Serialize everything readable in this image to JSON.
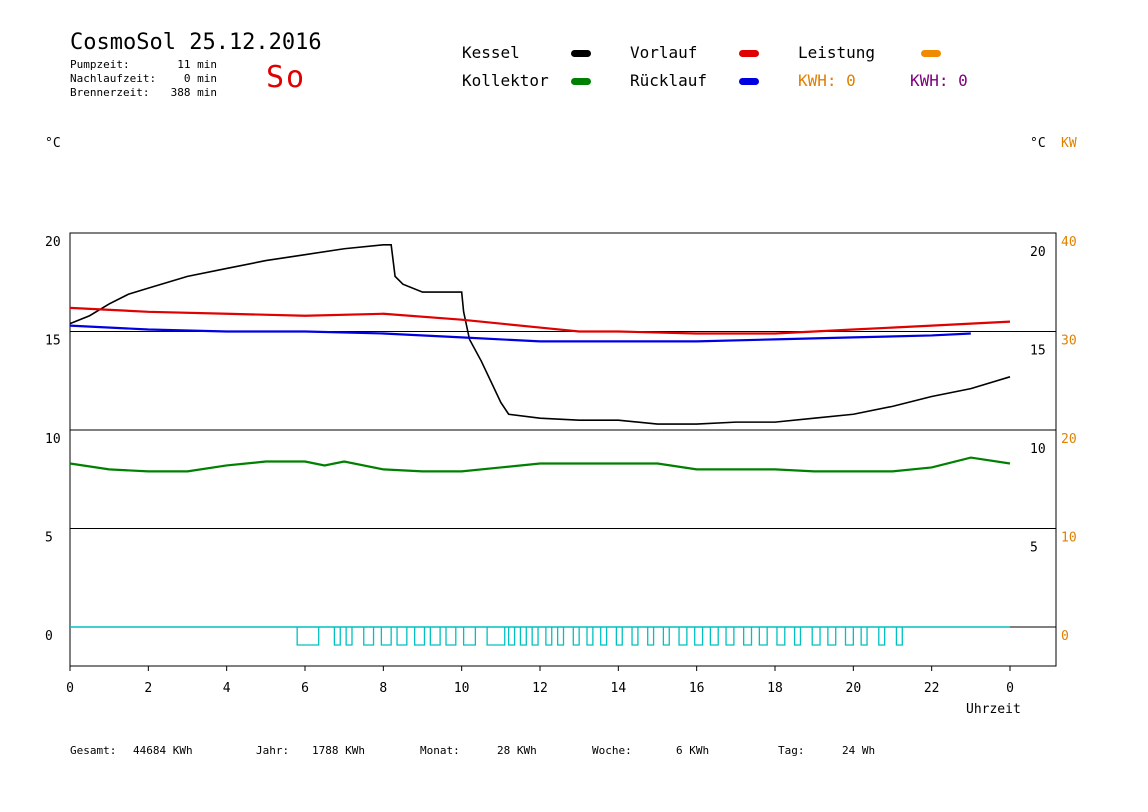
{
  "header": {
    "title": "CosmoSol 25.12.2016",
    "day_code": "So",
    "stats": [
      {
        "label": "Pumpzeit:",
        "value": "11 min"
      },
      {
        "label": "Nachlaufzeit:",
        "value": "0 min"
      },
      {
        "label": "Brennerzeit:",
        "value": "388 min"
      }
    ]
  },
  "legend": {
    "items": [
      {
        "label": "Kessel",
        "color": "#000000"
      },
      {
        "label": "Vorlauf",
        "color": "#e00000"
      },
      {
        "label": "Leistung",
        "color": "#f08a00"
      },
      {
        "label": "Kollektor",
        "color": "#008000"
      },
      {
        "label": "Rücklauf",
        "color": "#0000e0"
      }
    ],
    "kwh_orange": "KWH: 0",
    "kwh_purple": "KWH: 0",
    "kwh_orange_color": "#e08000",
    "kwh_purple_color": "#800080"
  },
  "axes": {
    "left_unit": "°C",
    "right_unit": "°C",
    "right_unit2": "KW",
    "xlabel": "Uhrzeit"
  },
  "footer": {
    "items": [
      {
        "label": "Gesamt:",
        "value": "44684 KWh"
      },
      {
        "label": "Jahr:",
        "value": "1788 KWh"
      },
      {
        "label": "Monat:",
        "value": "28 KWh"
      },
      {
        "label": "Woche:",
        "value": "6 KWh"
      },
      {
        "label": "Tag:",
        "value": "24 Wh"
      }
    ]
  },
  "chart_data": {
    "type": "line",
    "xlabel": "Uhrzeit",
    "ylabel": "°C",
    "x_ticks": [
      "0",
      "2",
      "4",
      "6",
      "8",
      "10",
      "12",
      "14",
      "16",
      "18",
      "20",
      "22",
      "0"
    ],
    "xlim": [
      0,
      24
    ],
    "ylim": [
      -2,
      20
    ],
    "y_ticks_left": [
      20,
      15,
      10,
      5,
      0
    ],
    "y_ticks_right_c": [
      20,
      15,
      10,
      5
    ],
    "y_ticks_right_kw": [
      40,
      30,
      20,
      10,
      0
    ],
    "grid": true,
    "series": [
      {
        "name": "Kessel",
        "color": "#000000",
        "x": [
          0,
          0.5,
          1,
          1.5,
          2,
          3,
          4,
          5,
          6,
          7,
          8,
          8.2,
          8.3,
          8.5,
          9,
          10,
          10.05,
          10.2,
          10.5,
          11,
          11.2,
          12,
          13,
          14,
          15,
          16,
          17,
          18,
          19,
          20,
          21,
          22,
          23,
          24
        ],
        "y": [
          15.4,
          15.8,
          16.4,
          16.9,
          17.2,
          17.8,
          18.2,
          18.6,
          18.9,
          19.2,
          19.4,
          19.4,
          17.8,
          17.4,
          17.0,
          17.0,
          16.0,
          14.6,
          13.5,
          11.4,
          10.8,
          10.6,
          10.5,
          10.5,
          10.3,
          10.3,
          10.4,
          10.4,
          10.6,
          10.8,
          11.2,
          11.7,
          12.1,
          12.7
        ]
      },
      {
        "name": "Vorlauf",
        "color": "#e00000",
        "x": [
          0,
          2,
          4,
          6,
          8,
          10,
          12,
          13,
          14,
          16,
          18,
          20,
          22,
          24
        ],
        "y": [
          16.2,
          16.0,
          15.9,
          15.8,
          15.9,
          15.6,
          15.2,
          15.0,
          15.0,
          14.9,
          14.9,
          15.1,
          15.3,
          15.5
        ]
      },
      {
        "name": "Rücklauf",
        "color": "#0000e0",
        "x": [
          0,
          2,
          4,
          6,
          8,
          10,
          12,
          14,
          16,
          18,
          20,
          22,
          23
        ],
        "y": [
          15.3,
          15.1,
          15.0,
          15.0,
          14.9,
          14.7,
          14.5,
          14.5,
          14.5,
          14.6,
          14.7,
          14.8,
          14.9
        ]
      },
      {
        "name": "Kollektor",
        "color": "#008000",
        "x": [
          0,
          1,
          2,
          3,
          4,
          5,
          6,
          6.5,
          7,
          8,
          9,
          10,
          11,
          12,
          13,
          14,
          15,
          16,
          17,
          18,
          19,
          20,
          21,
          22,
          23,
          24
        ],
        "y": [
          8.3,
          8.0,
          7.9,
          7.9,
          8.2,
          8.4,
          8.4,
          8.2,
          8.4,
          8.0,
          7.9,
          7.9,
          8.1,
          8.3,
          8.3,
          8.3,
          8.3,
          8.0,
          8.0,
          8.0,
          7.9,
          7.9,
          7.9,
          8.1,
          8.6,
          8.3
        ]
      }
    ],
    "pump_pulses": {
      "color": "#00c0c0",
      "pulses": [
        [
          5.8,
          6.35
        ],
        [
          6.75,
          6.9
        ],
        [
          7.05,
          7.2
        ],
        [
          7.5,
          7.75
        ],
        [
          7.95,
          8.2
        ],
        [
          8.35,
          8.6
        ],
        [
          8.8,
          9.05
        ],
        [
          9.2,
          9.45
        ],
        [
          9.6,
          9.85
        ],
        [
          10.05,
          10.35
        ],
        [
          10.65,
          11.1
        ],
        [
          11.2,
          11.35
        ],
        [
          11.5,
          11.65
        ],
        [
          11.8,
          11.95
        ],
        [
          12.15,
          12.3
        ],
        [
          12.45,
          12.6
        ],
        [
          12.85,
          13.0
        ],
        [
          13.2,
          13.35
        ],
        [
          13.55,
          13.7
        ],
        [
          13.95,
          14.1
        ],
        [
          14.35,
          14.5
        ],
        [
          14.75,
          14.9
        ],
        [
          15.15,
          15.3
        ],
        [
          15.55,
          15.75
        ],
        [
          15.95,
          16.15
        ],
        [
          16.35,
          16.55
        ],
        [
          16.75,
          16.95
        ],
        [
          17.2,
          17.4
        ],
        [
          17.6,
          17.8
        ],
        [
          18.05,
          18.25
        ],
        [
          18.5,
          18.65
        ],
        [
          18.95,
          19.15
        ],
        [
          19.35,
          19.55
        ],
        [
          19.8,
          20.0
        ],
        [
          20.2,
          20.35
        ],
        [
          20.65,
          20.8
        ],
        [
          21.1,
          21.25
        ]
      ]
    }
  }
}
